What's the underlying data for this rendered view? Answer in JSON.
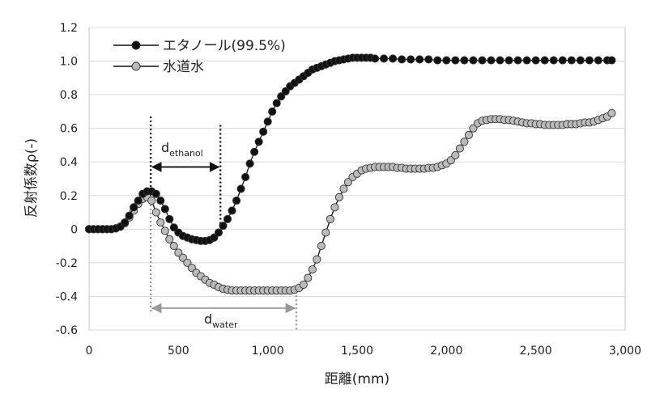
{
  "chart_data": {
    "type": "line",
    "xlabel": "距離(mm)",
    "ylabel": "反射係数ρ(-)",
    "xlim": [
      0,
      3000
    ],
    "ylim": [
      -0.6,
      1.2
    ],
    "xticks": [
      0,
      500,
      1000,
      1500,
      2000,
      2500,
      3000
    ],
    "xtick_labels": [
      "0",
      "500",
      "1,000",
      "1,500",
      "2,000",
      "2,500",
      "3,000"
    ],
    "yticks": [
      -0.6,
      -0.4,
      -0.2,
      0,
      0.2,
      0.4,
      0.6,
      0.8,
      1.0,
      1.2
    ],
    "ytick_labels": [
      "-0.6",
      "-0.4",
      "-0.2",
      "0",
      "0.2",
      "0.4",
      "0.6",
      "0.8",
      "1.0",
      "1.2"
    ],
    "grid": "horizontal",
    "legend_position": "top-left",
    "series": [
      {
        "name": "エタノール(99.5%)",
        "marker_fill": "#111111",
        "line_color": "#111111",
        "x": [
          0,
          25,
          50,
          75,
          100,
          125,
          150,
          175,
          200,
          225,
          250,
          275,
          300,
          325,
          350,
          375,
          400,
          425,
          450,
          475,
          500,
          525,
          550,
          575,
          600,
          625,
          650,
          675,
          700,
          725,
          750,
          775,
          800,
          825,
          850,
          875,
          900,
          925,
          950,
          975,
          1000,
          1025,
          1050,
          1075,
          1100,
          1125,
          1150,
          1175,
          1200,
          1225,
          1250,
          1275,
          1300,
          1325,
          1350,
          1375,
          1400,
          1425,
          1450,
          1475,
          1500,
          1525,
          1550,
          1575,
          1600,
          1650,
          1700,
          1750,
          1800,
          1850,
          1900,
          1950,
          2000,
          2050,
          2100,
          2150,
          2200,
          2250,
          2300,
          2350,
          2400,
          2450,
          2500,
          2550,
          2600,
          2650,
          2700,
          2750,
          2800,
          2850,
          2900,
          2925
        ],
        "y": [
          0,
          0,
          0,
          0,
          0,
          0,
          0.005,
          0.015,
          0.04,
          0.08,
          0.13,
          0.17,
          0.21,
          0.225,
          0.225,
          0.21,
          0.17,
          0.12,
          0.06,
          0.01,
          -0.02,
          -0.04,
          -0.05,
          -0.06,
          -0.065,
          -0.07,
          -0.07,
          -0.065,
          -0.05,
          -0.02,
          0.02,
          0.06,
          0.11,
          0.17,
          0.24,
          0.31,
          0.39,
          0.46,
          0.52,
          0.58,
          0.64,
          0.7,
          0.75,
          0.79,
          0.82,
          0.85,
          0.87,
          0.89,
          0.91,
          0.93,
          0.95,
          0.96,
          0.97,
          0.98,
          0.99,
          1.0,
          1.005,
          1.01,
          1.015,
          1.02,
          1.02,
          1.02,
          1.02,
          1.02,
          1.015,
          1.015,
          1.015,
          1.01,
          1.01,
          1.01,
          1.01,
          1.005,
          1.005,
          1.005,
          1.005,
          1.005,
          1.005,
          1.005,
          1.005,
          1.005,
          1.005,
          1.005,
          1.005,
          1.005,
          1.005,
          1.005,
          1.005,
          1.005,
          1.005,
          1.005,
          1.005,
          1.005
        ]
      },
      {
        "name": "水道水",
        "marker_fill": "#bbbbbb",
        "line_color": "#111111",
        "x": [
          0,
          25,
          50,
          75,
          100,
          125,
          150,
          175,
          200,
          225,
          250,
          275,
          300,
          325,
          350,
          375,
          400,
          425,
          450,
          475,
          500,
          525,
          550,
          575,
          600,
          625,
          650,
          675,
          700,
          725,
          750,
          775,
          800,
          825,
          850,
          875,
          900,
          925,
          950,
          975,
          1000,
          1025,
          1050,
          1075,
          1100,
          1125,
          1150,
          1175,
          1200,
          1225,
          1250,
          1275,
          1300,
          1325,
          1350,
          1375,
          1400,
          1425,
          1450,
          1475,
          1500,
          1525,
          1550,
          1575,
          1600,
          1625,
          1650,
          1675,
          1700,
          1725,
          1750,
          1775,
          1800,
          1825,
          1850,
          1875,
          1900,
          1925,
          1950,
          1975,
          2000,
          2025,
          2050,
          2075,
          2100,
          2125,
          2150,
          2175,
          2200,
          2225,
          2250,
          2275,
          2300,
          2325,
          2350,
          2375,
          2400,
          2425,
          2450,
          2475,
          2500,
          2525,
          2550,
          2575,
          2600,
          2625,
          2650,
          2675,
          2700,
          2725,
          2750,
          2775,
          2800,
          2825,
          2850,
          2875,
          2900,
          2925
        ],
        "y": [
          0,
          0,
          0,
          0,
          0,
          0,
          0.005,
          0.015,
          0.035,
          0.07,
          0.11,
          0.15,
          0.18,
          0.19,
          0.17,
          0.1,
          0.04,
          -0.01,
          -0.06,
          -0.1,
          -0.14,
          -0.17,
          -0.2,
          -0.23,
          -0.26,
          -0.28,
          -0.3,
          -0.32,
          -0.33,
          -0.345,
          -0.355,
          -0.36,
          -0.365,
          -0.365,
          -0.365,
          -0.365,
          -0.365,
          -0.365,
          -0.365,
          -0.365,
          -0.365,
          -0.365,
          -0.365,
          -0.365,
          -0.365,
          -0.365,
          -0.36,
          -0.35,
          -0.33,
          -0.29,
          -0.24,
          -0.18,
          -0.1,
          -0.02,
          0.06,
          0.13,
          0.19,
          0.24,
          0.28,
          0.31,
          0.33,
          0.35,
          0.36,
          0.365,
          0.37,
          0.37,
          0.37,
          0.37,
          0.37,
          0.365,
          0.365,
          0.36,
          0.36,
          0.36,
          0.36,
          0.36,
          0.365,
          0.365,
          0.37,
          0.38,
          0.39,
          0.41,
          0.44,
          0.48,
          0.52,
          0.56,
          0.6,
          0.63,
          0.645,
          0.65,
          0.655,
          0.655,
          0.655,
          0.65,
          0.65,
          0.645,
          0.64,
          0.635,
          0.63,
          0.63,
          0.625,
          0.625,
          0.62,
          0.62,
          0.62,
          0.62,
          0.62,
          0.625,
          0.625,
          0.625,
          0.63,
          0.635,
          0.635,
          0.64,
          0.65,
          0.66,
          0.67,
          0.69
        ]
      }
    ],
    "annotations": [
      {
        "label": "d",
        "subscript": "ethanol",
        "x_start": 345,
        "x_end": 735,
        "y": 0.37
      },
      {
        "label": "d",
        "subscript": "water",
        "x_start": 345,
        "x_end": 1160,
        "y": -0.47
      }
    ]
  }
}
